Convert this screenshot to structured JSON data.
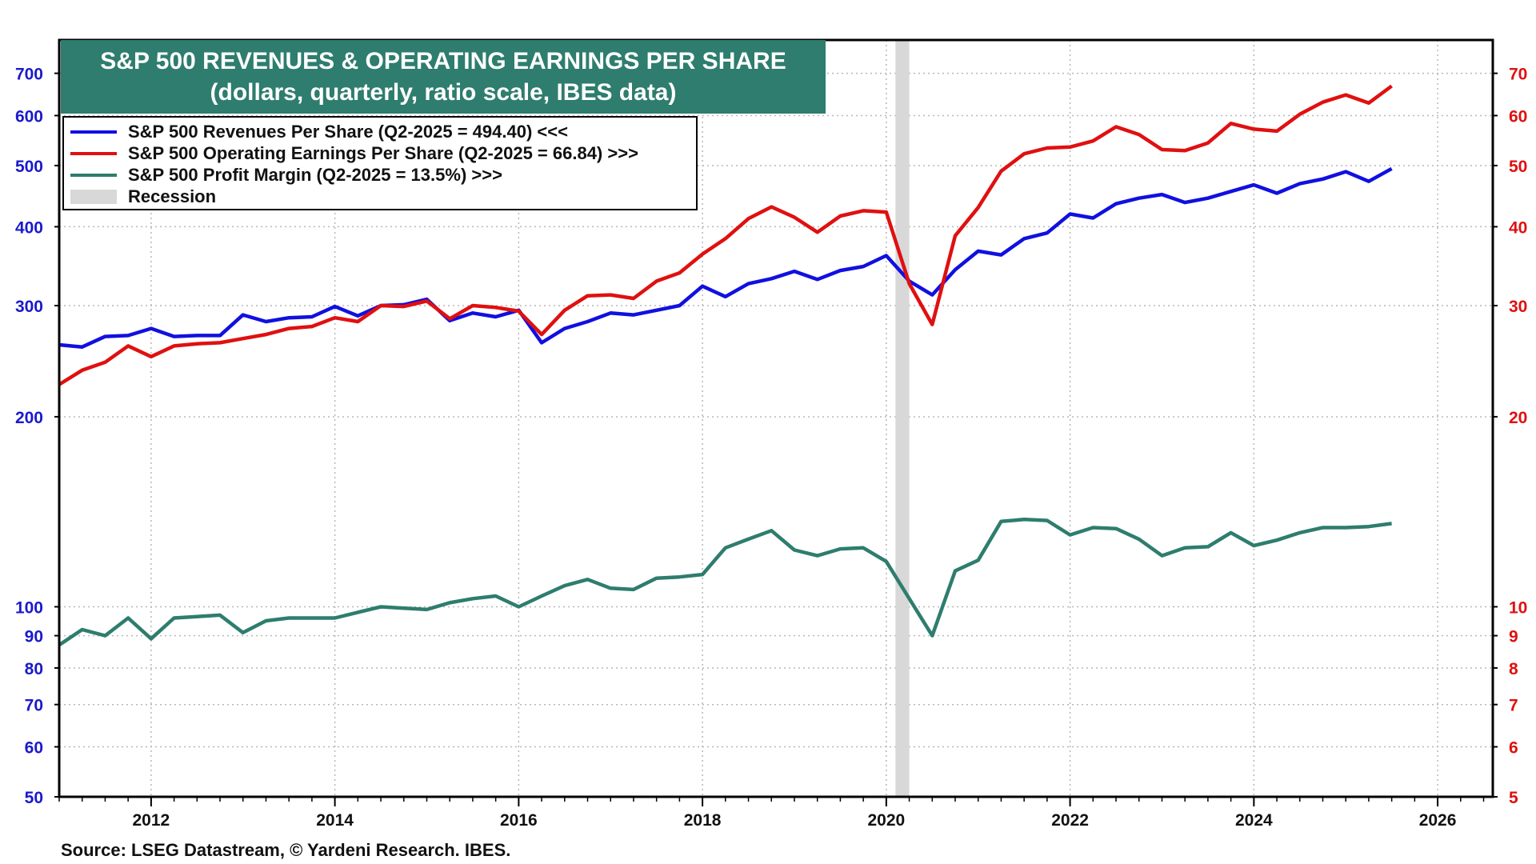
{
  "chart_data": {
    "type": "line",
    "title": "S&P 500 REVENUES & OPERATING EARNINGS PER SHARE",
    "subtitle": "(dollars, quarterly, ratio scale, IBES data)",
    "source": "Source: LSEG Datastream, © Yardeni Research. IBES.",
    "scale": "log",
    "x_range": [
      2011.0,
      2026.6
    ],
    "x_ticks": [
      2012,
      2014,
      2016,
      2018,
      2020,
      2022,
      2024,
      2026
    ],
    "x_tick_labels": [
      "2012",
      "2014",
      "2016",
      "2018",
      "2020",
      "2022",
      "2024",
      "2026"
    ],
    "left_axis": {
      "range": [
        50,
        750
      ],
      "ticks": [
        50,
        60,
        70,
        80,
        90,
        100,
        200,
        300,
        400,
        500,
        600,
        700
      ],
      "labels": [
        "50",
        "60",
        "70",
        "80",
        "90",
        "100",
        "200",
        "300",
        "400",
        "500",
        "600",
        "700"
      ],
      "color": "#1a1acc"
    },
    "right_axis": {
      "range": [
        5,
        75
      ],
      "ticks": [
        5,
        6,
        7,
        8,
        9,
        10,
        20,
        30,
        40,
        50,
        60,
        70
      ],
      "labels": [
        "5",
        "6",
        "7",
        "8",
        "9",
        "10",
        "20",
        "30",
        "40",
        "50",
        "60",
        "70"
      ],
      "color": "#e01010"
    },
    "recession": {
      "start": 2020.1,
      "end": 2020.25,
      "label": "Recession",
      "color": "#d8d8d8"
    },
    "legend": [
      {
        "label": "S&P 500 Revenues Per Share (Q2-2025 = 494.40) <<<",
        "color": "#1010e0"
      },
      {
        "label": "S&P 500 Operating Earnings Per Share (Q2-2025 = 66.84) >>>",
        "color": "#e01010"
      },
      {
        "label": "S&P 500 Profit Margin (Q2-2025 = 13.5%) >>>",
        "color": "#2e7d6e"
      },
      {
        "label": "Recession",
        "color": "#d8d8d8"
      }
    ],
    "series": [
      {
        "name": "S&P 500 Revenues Per Share",
        "axis": "left",
        "color": "#1010e0",
        "x": [
          2011.0,
          2011.25,
          2011.5,
          2011.75,
          2012.0,
          2012.25,
          2012.5,
          2012.75,
          2013.0,
          2013.25,
          2013.5,
          2013.75,
          2014.0,
          2014.25,
          2014.5,
          2014.75,
          2015.0,
          2015.25,
          2015.5,
          2015.75,
          2016.0,
          2016.25,
          2016.5,
          2016.75,
          2017.0,
          2017.25,
          2017.5,
          2017.75,
          2018.0,
          2018.25,
          2018.5,
          2018.75,
          2019.0,
          2019.25,
          2019.5,
          2019.75,
          2020.0,
          2020.25,
          2020.5,
          2020.75,
          2021.0,
          2021.25,
          2021.5,
          2021.75,
          2022.0,
          2022.25,
          2022.5,
          2022.75,
          2023.0,
          2023.25,
          2023.5,
          2023.75,
          2024.0,
          2024.25,
          2024.5,
          2024.75,
          2025.0,
          2025.25,
          2025.5
        ],
        "values": [
          260,
          258,
          268,
          269,
          276,
          268,
          269,
          269,
          290,
          283,
          287,
          288,
          299,
          289,
          300,
          301,
          307,
          284,
          292,
          288,
          295,
          262,
          276,
          283,
          292,
          290,
          295,
          300,
          322,
          310,
          325,
          331,
          340,
          330,
          341,
          346,
          360,
          328,
          312,
          342,
          366,
          361,
          383,
          391,
          419,
          413,
          435,
          444,
          450,
          437,
          444,
          455,
          466,
          452,
          468,
          476,
          489,
          472,
          494.4
        ]
      },
      {
        "name": "S&P 500 Operating Earnings Per Share",
        "axis": "right",
        "color": "#e01010",
        "x": [
          2011.0,
          2011.25,
          2011.5,
          2011.75,
          2012.0,
          2012.25,
          2012.5,
          2012.75,
          2013.0,
          2013.25,
          2013.5,
          2013.75,
          2014.0,
          2014.25,
          2014.5,
          2014.75,
          2015.0,
          2015.25,
          2015.5,
          2015.75,
          2016.0,
          2016.25,
          2016.5,
          2016.75,
          2017.0,
          2017.25,
          2017.5,
          2017.75,
          2018.0,
          2018.25,
          2018.5,
          2018.75,
          2019.0,
          2019.25,
          2019.5,
          2019.75,
          2020.0,
          2020.25,
          2020.5,
          2020.75,
          2021.0,
          2021.25,
          2021.5,
          2021.75,
          2022.0,
          2022.25,
          2022.5,
          2022.75,
          2023.0,
          2023.25,
          2023.5,
          2023.75,
          2024.0,
          2024.25,
          2024.5,
          2024.75,
          2025.0,
          2025.25,
          2025.5
        ],
        "values": [
          22.5,
          23.7,
          24.4,
          25.9,
          24.9,
          25.9,
          26.1,
          26.2,
          26.6,
          27.0,
          27.6,
          27.8,
          28.7,
          28.3,
          30.0,
          29.9,
          30.5,
          28.6,
          30.0,
          29.8,
          29.4,
          27.0,
          29.5,
          31.1,
          31.2,
          30.8,
          32.8,
          33.8,
          36.2,
          38.3,
          41.2,
          43.0,
          41.4,
          39.2,
          41.6,
          42.4,
          42.2,
          32.5,
          28.0,
          38.7,
          42.9,
          49.0,
          52.2,
          53.3,
          53.5,
          54.7,
          57.6,
          56.0,
          53.0,
          52.8,
          54.3,
          58.3,
          57.1,
          56.7,
          60.3,
          63.0,
          64.7,
          62.8,
          66.84
        ]
      },
      {
        "name": "S&P 500 Profit Margin",
        "axis": "right",
        "color": "#2e7d6e",
        "x": [
          2011.0,
          2011.25,
          2011.5,
          2011.75,
          2012.0,
          2012.25,
          2012.5,
          2012.75,
          2013.0,
          2013.25,
          2013.5,
          2013.75,
          2014.0,
          2014.25,
          2014.5,
          2014.75,
          2015.0,
          2015.25,
          2015.5,
          2015.75,
          2016.0,
          2016.25,
          2016.5,
          2016.75,
          2017.0,
          2017.25,
          2017.5,
          2017.75,
          2018.0,
          2018.25,
          2018.5,
          2018.75,
          2019.0,
          2019.25,
          2019.5,
          2019.75,
          2020.0,
          2020.25,
          2020.5,
          2020.75,
          2021.0,
          2021.25,
          2021.5,
          2021.75,
          2022.0,
          2022.25,
          2022.5,
          2022.75,
          2023.0,
          2023.25,
          2023.5,
          2023.75,
          2024.0,
          2024.25,
          2024.5,
          2024.75,
          2025.0,
          2025.25,
          2025.5
        ],
        "values": [
          8.7,
          9.2,
          9.0,
          9.6,
          8.9,
          9.6,
          9.65,
          9.7,
          9.1,
          9.5,
          9.6,
          9.6,
          9.6,
          9.8,
          10.0,
          9.95,
          9.9,
          10.15,
          10.3,
          10.4,
          10.0,
          10.4,
          10.8,
          11.05,
          10.7,
          10.65,
          11.1,
          11.15,
          11.25,
          12.4,
          12.8,
          13.2,
          12.3,
          12.05,
          12.35,
          12.4,
          11.8,
          10.3,
          9.0,
          11.4,
          11.85,
          13.65,
          13.75,
          13.7,
          13.0,
          13.35,
          13.3,
          12.8,
          12.05,
          12.4,
          12.45,
          13.1,
          12.5,
          12.75,
          13.1,
          13.35,
          13.35,
          13.4,
          13.55
        ]
      }
    ]
  }
}
